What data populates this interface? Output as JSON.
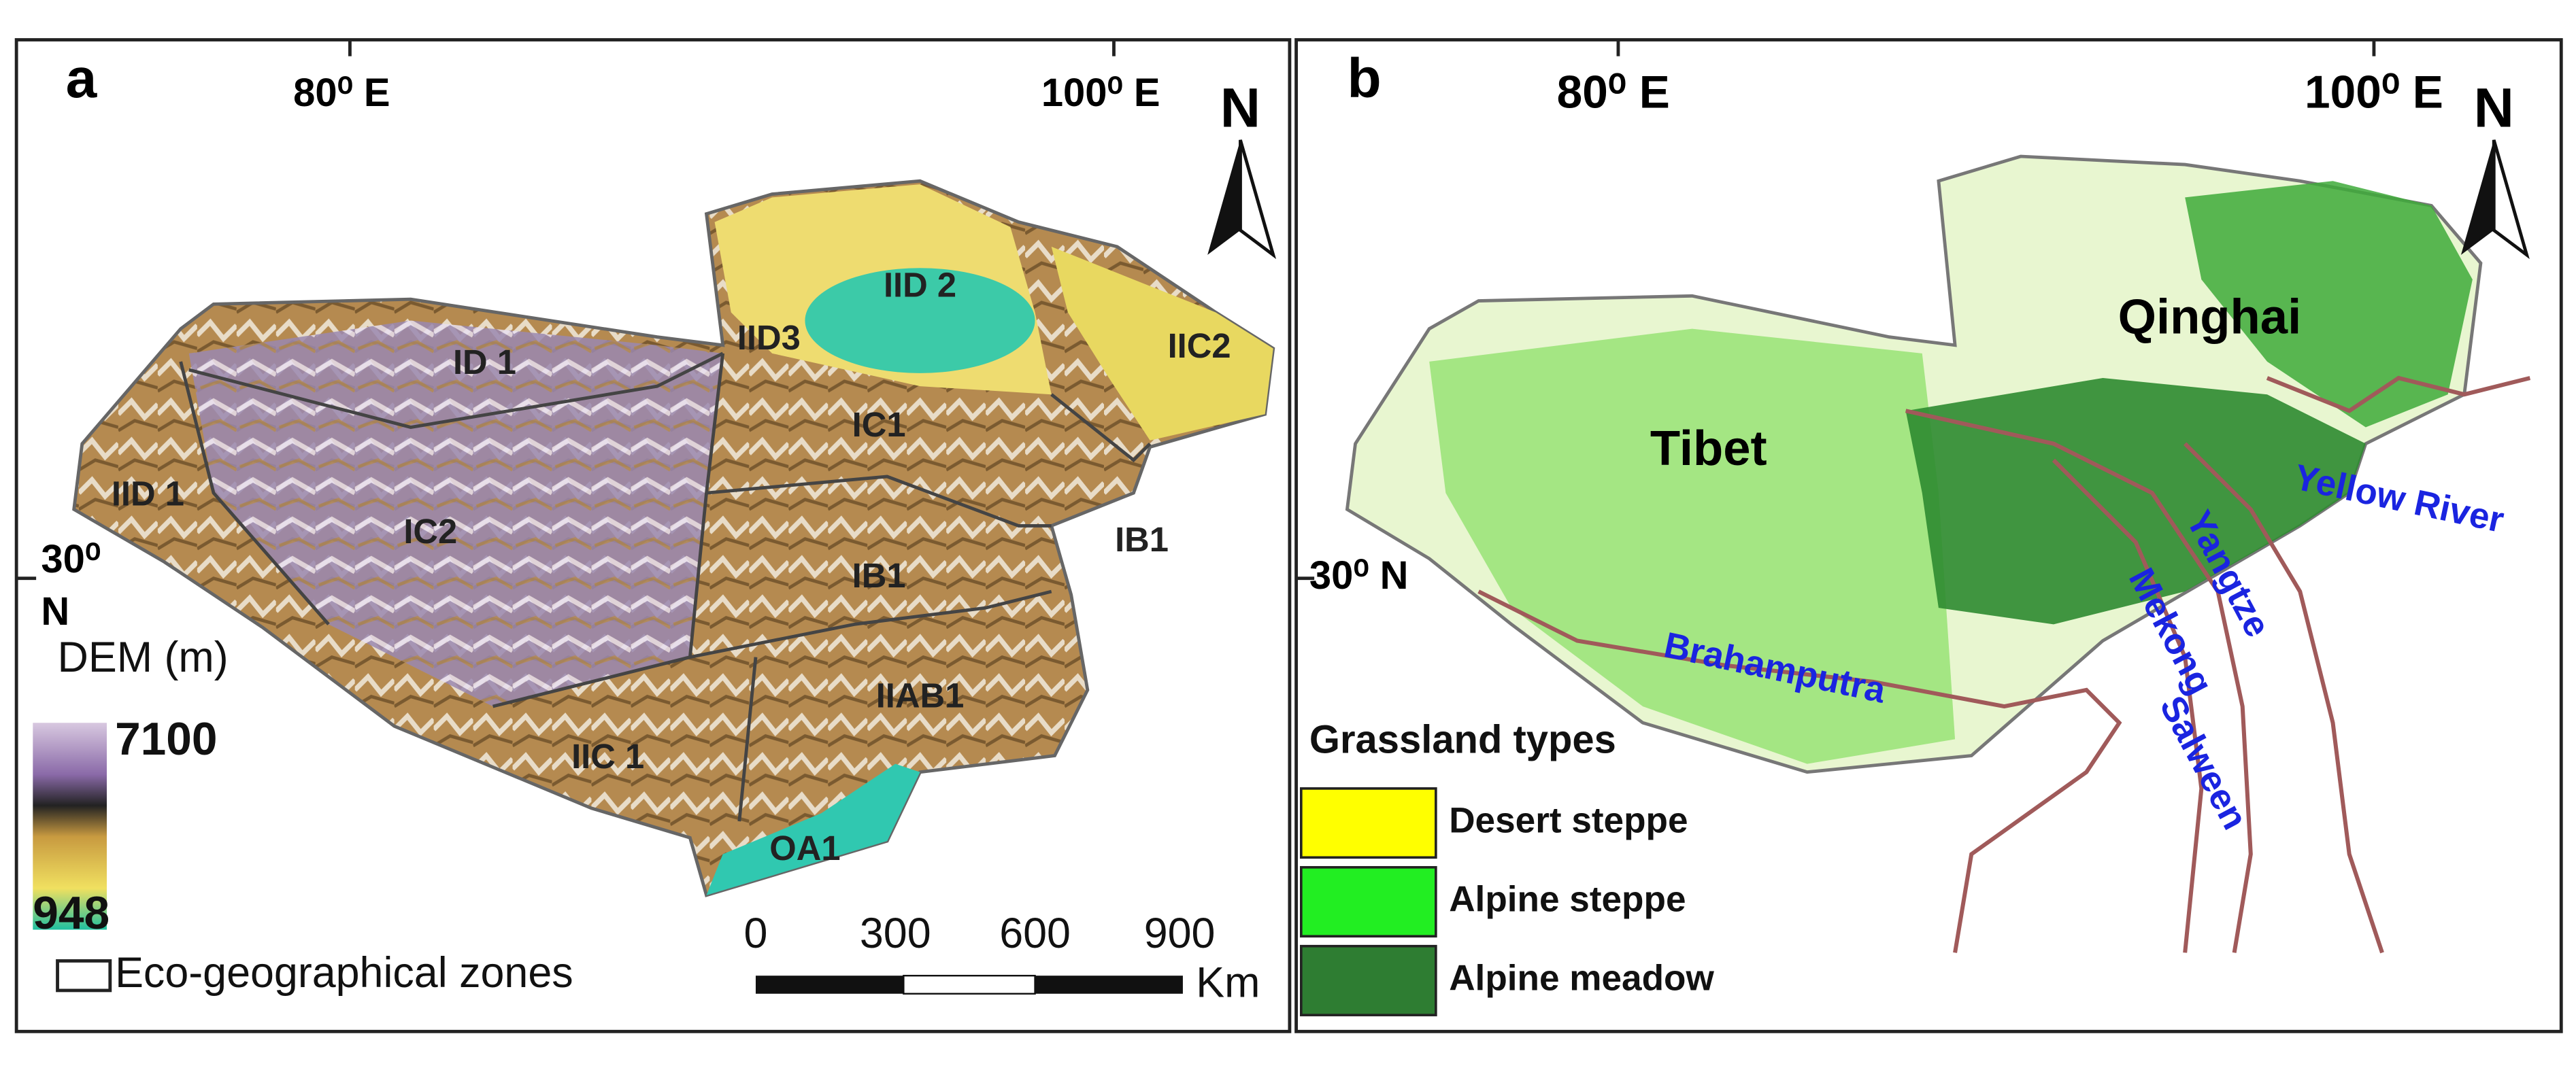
{
  "panel_a": {
    "label": "a",
    "lon_labels": [
      "80⁰ E",
      "100⁰ E"
    ],
    "lat_label": [
      "30⁰",
      "N"
    ],
    "north": "N",
    "zones": [
      "ID 1",
      "IID3",
      "IID 2",
      "IIC2",
      "IID 1",
      "IC1",
      "IC2",
      "IB1",
      "IB1",
      "IIAB1",
      "IIC 1",
      "OA1"
    ],
    "legend": {
      "title": "DEM (m)",
      "max": "7100",
      "min": "948",
      "zones": "Eco-geographical zones"
    },
    "scale_bar": {
      "ticks": [
        "0",
        "300",
        "600",
        "900"
      ],
      "unit": "Km"
    }
  },
  "panel_b": {
    "label": "b",
    "lon_labels": [
      "80⁰ E",
      "100⁰ E"
    ],
    "lat_label": "30⁰ N",
    "north": "N",
    "regions": [
      "Tibet",
      "Qinghai"
    ],
    "rivers": [
      "Yellow River",
      "Yangtze",
      "Mekong",
      "Salween",
      "Brahamputra"
    ],
    "legend": {
      "title": "Grassland types",
      "items": [
        {
          "name": "Desert steppe",
          "color": "#ffff00"
        },
        {
          "name": "Alpine steppe",
          "color": "#22ee22"
        },
        {
          "name": "Alpine meadow",
          "color": "#2e7d32"
        }
      ]
    }
  }
}
